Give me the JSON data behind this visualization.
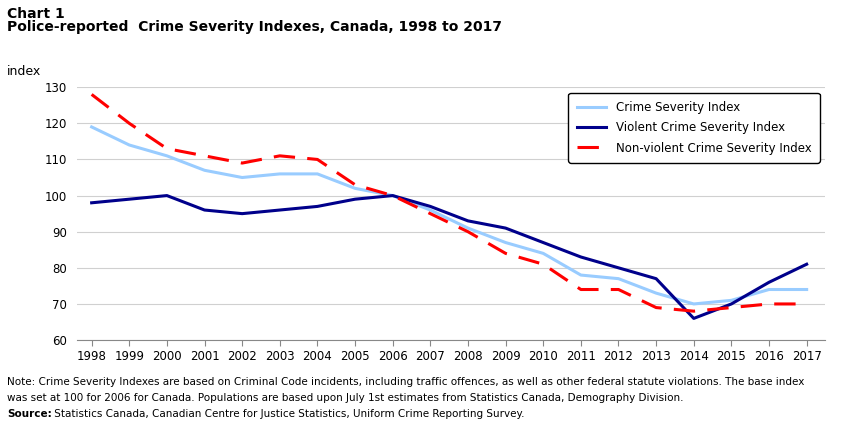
{
  "title_line1": "Chart 1",
  "title_line2": "Police-reported  Crime Severity Indexes, Canada, 1998 to 2017",
  "ylabel": "index",
  "years": [
    1998,
    1999,
    2000,
    2001,
    2002,
    2003,
    2004,
    2005,
    2006,
    2007,
    2008,
    2009,
    2010,
    2011,
    2012,
    2013,
    2014,
    2015,
    2016,
    2017
  ],
  "csi": [
    119,
    114,
    111,
    107,
    105,
    106,
    106,
    102,
    100,
    96,
    91,
    87,
    84,
    78,
    77,
    73,
    70,
    71,
    74,
    74
  ],
  "vcsi": [
    98,
    99,
    100,
    96,
    95,
    96,
    97,
    99,
    100,
    97,
    93,
    91,
    87,
    83,
    80,
    77,
    66,
    70,
    76,
    81
  ],
  "nvcsi": [
    128,
    120,
    113,
    111,
    109,
    111,
    110,
    103,
    100,
    95,
    90,
    84,
    81,
    74,
    74,
    69,
    68,
    69,
    70,
    70
  ],
  "csi_color": "#99ccff",
  "vcsi_color": "#00008B",
  "nvcsi_color": "#FF0000",
  "ylim": [
    60,
    130
  ],
  "yticks": [
    60,
    70,
    80,
    90,
    100,
    110,
    120,
    130
  ],
  "background_color": "#ffffff",
  "grid_color": "#d0d0d0",
  "note_bold": "Note:",
  "note_normal": " Crime Severity Indexes are based on ",
  "note_italic": "Criminal Code",
  "note_rest": " incidents, including traffic offences, as well as other federal statute violations. The base index was set at 100 for 2006 for Canada. Populations are based upon July 1st estimates from Statistics Canada, Demography Division.",
  "source_bold": "Source:",
  "source_normal": " Statistics Canada, Canadian Centre for Justice Statistics, Uniform Crime Reporting Survey.",
  "legend_labels": [
    "Crime Severity Index",
    "Violent Crime Severity Index",
    "Non-violent Crime Severity Index"
  ]
}
